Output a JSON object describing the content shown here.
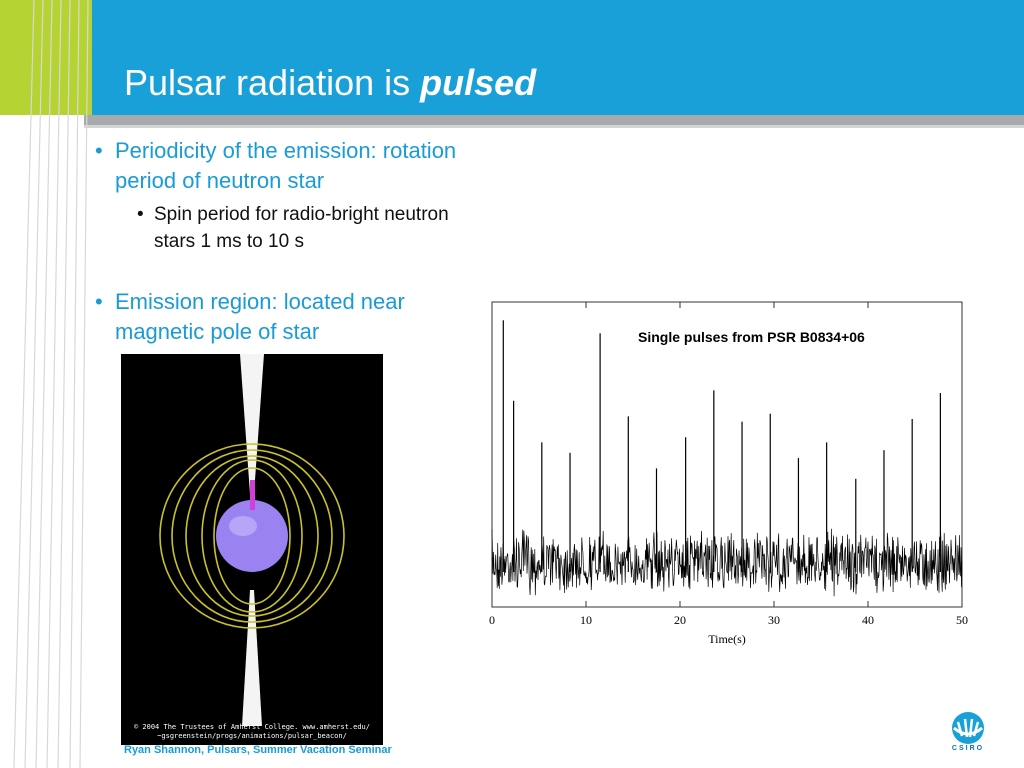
{
  "slide": {
    "title_plain": "Pulsar radiation is ",
    "title_emphasis": "pulsed",
    "bullets": [
      {
        "text_line1": "Periodicity of the emission:  rotation",
        "text_line2": "period of neutron star",
        "sub": {
          "line1": "Spin period for radio-bright neutron",
          "line2": "stars 1 ms to 10 s"
        }
      },
      {
        "text_line1": "Emission region: located near",
        "text_line2": "magnetic pole of star"
      }
    ],
    "bullet_glyph": "•",
    "image_credit_line1": "© 2004 The Trustees of Amherst College.  www.amherst.edu/",
    "image_credit_line2": "~gsgreenstein/progs/animations/pulsar_beacon/",
    "footer": "Ryan Shannon, Pulsars, Summer Vacation Seminar",
    "logo_text": "CSIRO"
  },
  "colors": {
    "header_blue": "#1aa0d8",
    "header_green": "#b6d334",
    "bullet_blue": "#1a9bd7"
  },
  "chart_data": {
    "type": "line",
    "title": "Single pulses from PSR B0834+06",
    "xlabel": "Time(s)",
    "ylabel": "",
    "xlim": [
      0,
      50
    ],
    "xticks": [
      0,
      10,
      20,
      30,
      40,
      50
    ],
    "noise_level": 0.12,
    "series": [
      {
        "pulses": [
          {
            "x": 1.2,
            "y": 0.93
          },
          {
            "x": 2.3,
            "y": 0.62
          },
          {
            "x": 5.3,
            "y": 0.46
          },
          {
            "x": 8.3,
            "y": 0.42
          },
          {
            "x": 11.5,
            "y": 0.88
          },
          {
            "x": 14.5,
            "y": 0.56
          },
          {
            "x": 17.5,
            "y": 0.36
          },
          {
            "x": 20.6,
            "y": 0.48
          },
          {
            "x": 23.6,
            "y": 0.66
          },
          {
            "x": 26.6,
            "y": 0.54
          },
          {
            "x": 29.6,
            "y": 0.57
          },
          {
            "x": 32.6,
            "y": 0.4
          },
          {
            "x": 35.6,
            "y": 0.46
          },
          {
            "x": 38.7,
            "y": 0.32
          },
          {
            "x": 41.7,
            "y": 0.43
          },
          {
            "x": 44.7,
            "y": 0.55
          },
          {
            "x": 47.7,
            "y": 0.65
          }
        ]
      }
    ]
  }
}
